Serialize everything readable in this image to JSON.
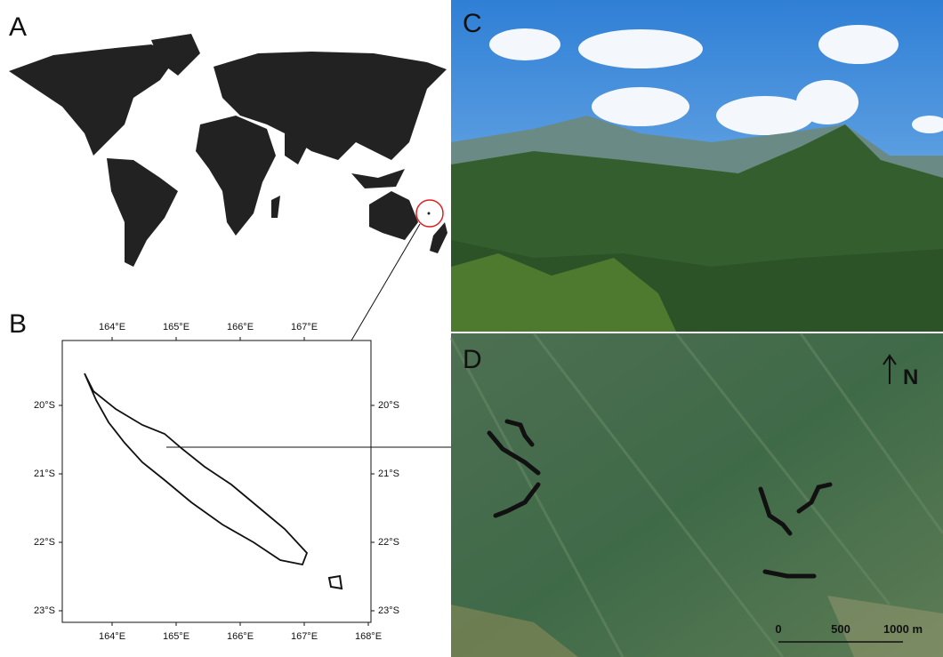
{
  "panels": [
    {
      "label": "A"
    },
    {
      "label": "B"
    },
    {
      "label": "C"
    },
    {
      "label": "D"
    }
  ],
  "map_b": {
    "x_ticks_top": [
      "164°E",
      "165°E",
      "166°E",
      "167°E"
    ],
    "x_ticks_bottom": [
      "164°E",
      "165°E",
      "166°E",
      "167°E",
      "168°E"
    ],
    "y_ticks_left": [
      "20°S",
      "21°S",
      "22°S",
      "23°S"
    ],
    "y_ticks_right": [
      "20°S",
      "21°S",
      "22°S",
      "23°S"
    ]
  },
  "north_label": "N",
  "scale_bar": [
    "0",
    "500",
    "1000 m"
  ]
}
